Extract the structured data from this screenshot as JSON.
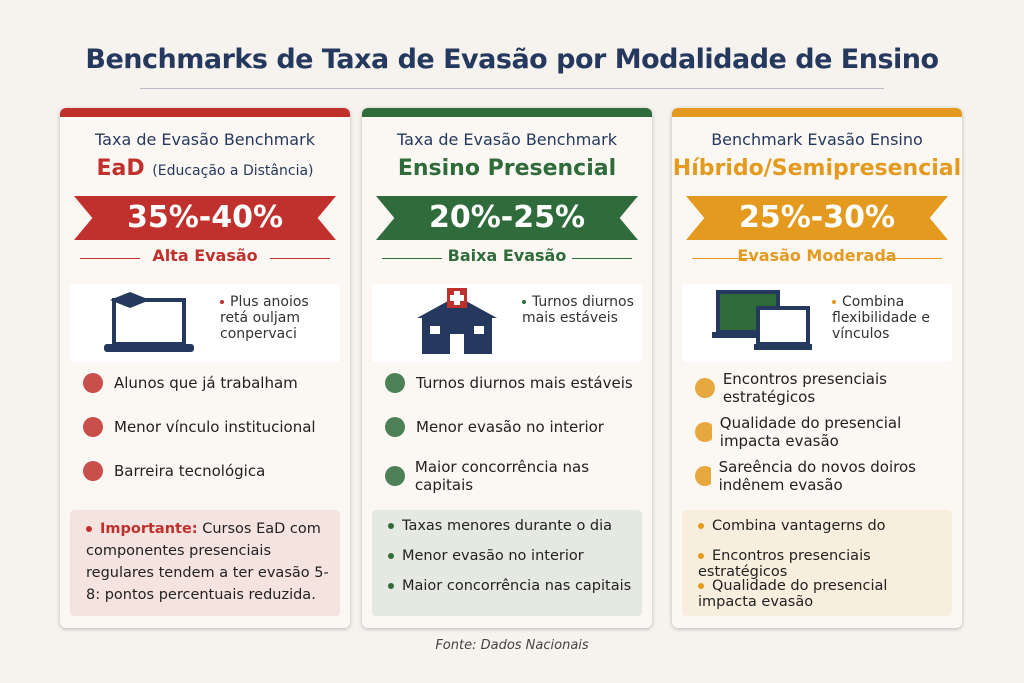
{
  "title": "Benchmarks de Taxa de Evasão por Modalidade de Ensino",
  "cards": [
    {
      "color": "#c0312e",
      "header": "Taxa de Evasão Benchmark",
      "subtitle": "EaD",
      "subtitle_note": "(Educação a Distância)",
      "range": "35%-40%",
      "level": "Alta Evasão",
      "hero": "Plus anoios retá ouljam conpervaci",
      "items": [
        "Alunos que já trabalham",
        "Menor vínculo institucional",
        "Barreira tecnológica"
      ],
      "note": {
        "label": "Importante:",
        "text": "Cursos EaD com componentes presenciais regulares tendem a ter evasão 5-8: pontos percentuais reduzida."
      }
    },
    {
      "color": "#2f6b3b",
      "header": "Taxa de Evasão Benchmark",
      "subtitle": "Ensino Presencial",
      "range": "20%-25%",
      "level": "Baixa Evasão",
      "hero": "Turnos diurnos mais estáveis",
      "items": [
        "Turnos diurnos mais estáveis",
        "Menor evasão no interior",
        "Maior concorrência nas capitais"
      ],
      "notes": [
        "Taxas menores durante o dia",
        "Menor evasão no interior",
        "Maior concorrência nas capitais"
      ]
    },
    {
      "color": "#e39a1e",
      "header": "Benchmark Evasão Ensino",
      "subtitle": "Híbrido/Semipresencial",
      "range": "25%-30%",
      "level": "Evasão Moderada",
      "hero": "Combina flexibilidade e vínculos",
      "items": [
        "Encontros presenciais estratégicos",
        "Qualidade do presencial impacta evasão",
        "Sareência do novos doiros indênem evasão"
      ],
      "notes": [
        "Combina vantagerns do",
        "Encontros presenciais estratégicos",
        "Qualidade do presencial impacta evasão"
      ]
    }
  ],
  "source": "Fonte: Dados Nacionais"
}
